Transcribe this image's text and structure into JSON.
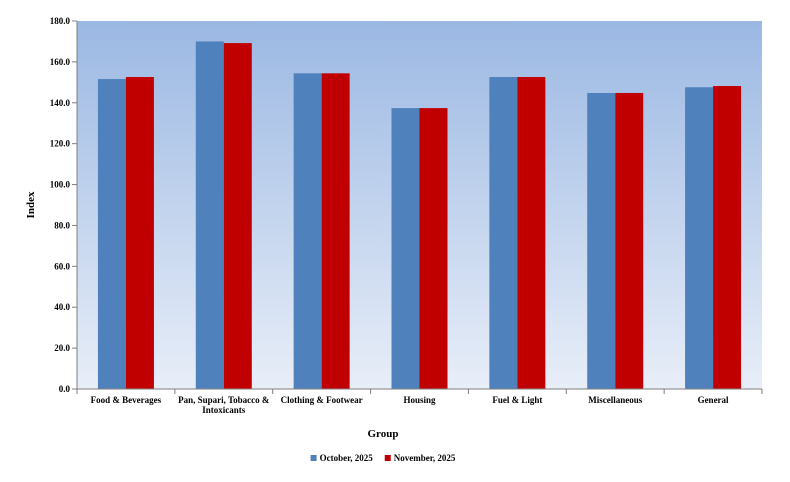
{
  "chart_data": {
    "type": "bar",
    "categories": [
      [
        "Food & Beverages"
      ],
      [
        "Pan, Supari, Tobacco &",
        "Intoxicants"
      ],
      [
        "Clothing & Footwear"
      ],
      [
        "Housing"
      ],
      [
        "Fuel & Light"
      ],
      [
        "Miscellaneous"
      ],
      [
        "General"
      ]
    ],
    "series": [
      {
        "name": "October, 2025",
        "color": "#4f81bd",
        "values": [
          151.6,
          170.0,
          154.4,
          137.4,
          152.6,
          144.8,
          147.6
        ]
      },
      {
        "name": "November, 2025",
        "color": "#c00000",
        "values": [
          152.6,
          169.2,
          154.4,
          137.4,
          152.6,
          144.8,
          148.2
        ]
      }
    ],
    "xlabel": "Group",
    "ylabel": "Index",
    "ylim": [
      0,
      180
    ],
    "ytick_step": 20,
    "ytick_format": "0.0",
    "legend_position": "bottom-center",
    "plot_background": "gradient: #9bb8e3 (top) to #e8eef8 (bottom)"
  }
}
